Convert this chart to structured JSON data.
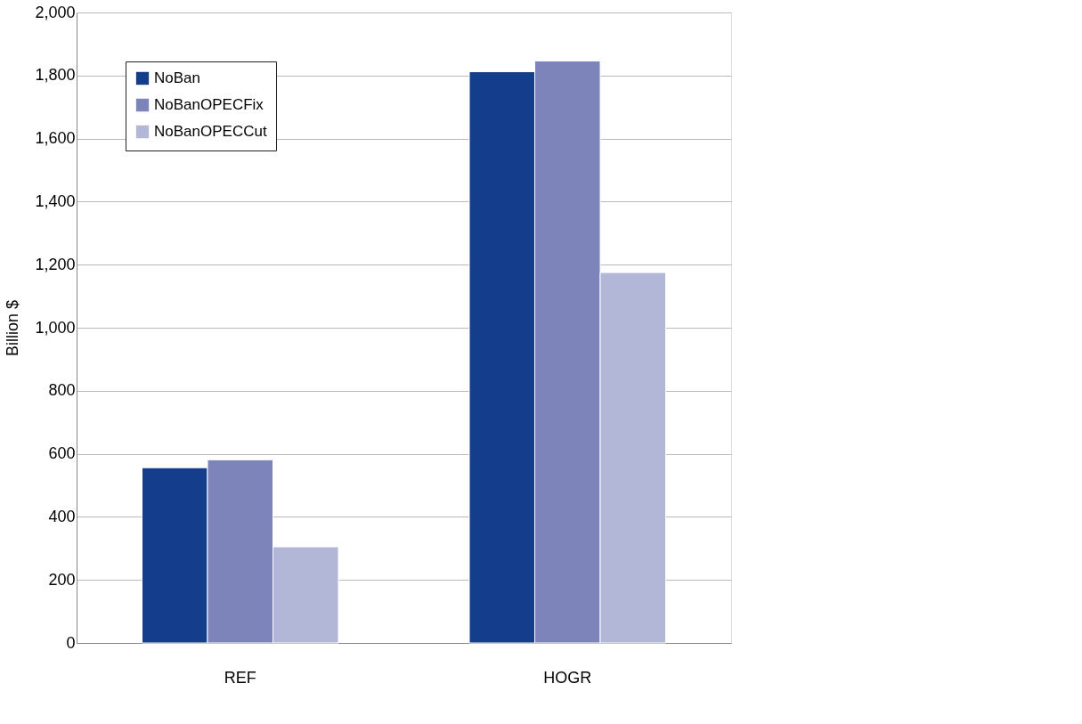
{
  "chart_data": {
    "type": "bar",
    "ylabel": "Billion $",
    "categories": [
      "REF",
      "HOGR"
    ],
    "series": [
      {
        "name": "NoBan",
        "color": "#143d8c",
        "values": [
          556,
          1812
        ]
      },
      {
        "name": "NoBanOPECFix",
        "color": "#7d84b9",
        "values": [
          581,
          1846
        ]
      },
      {
        "name": "NoBanOPECCut",
        "color": "#b3b7d7",
        "values": [
          305,
          1175
        ]
      }
    ],
    "ylim": [
      0,
      2000
    ],
    "yticks": [
      0,
      200,
      400,
      600,
      800,
      {
        "value": 1000,
        "label": "1,000"
      },
      {
        "value": 1200,
        "label": "1,200"
      },
      {
        "value": 1400,
        "label": "1,400"
      },
      {
        "value": 1600,
        "label": "1,600"
      },
      {
        "value": 1800,
        "label": "1,800"
      },
      {
        "value": 2000,
        "label": "2,000"
      }
    ],
    "grid": "y",
    "legend": "top left"
  }
}
